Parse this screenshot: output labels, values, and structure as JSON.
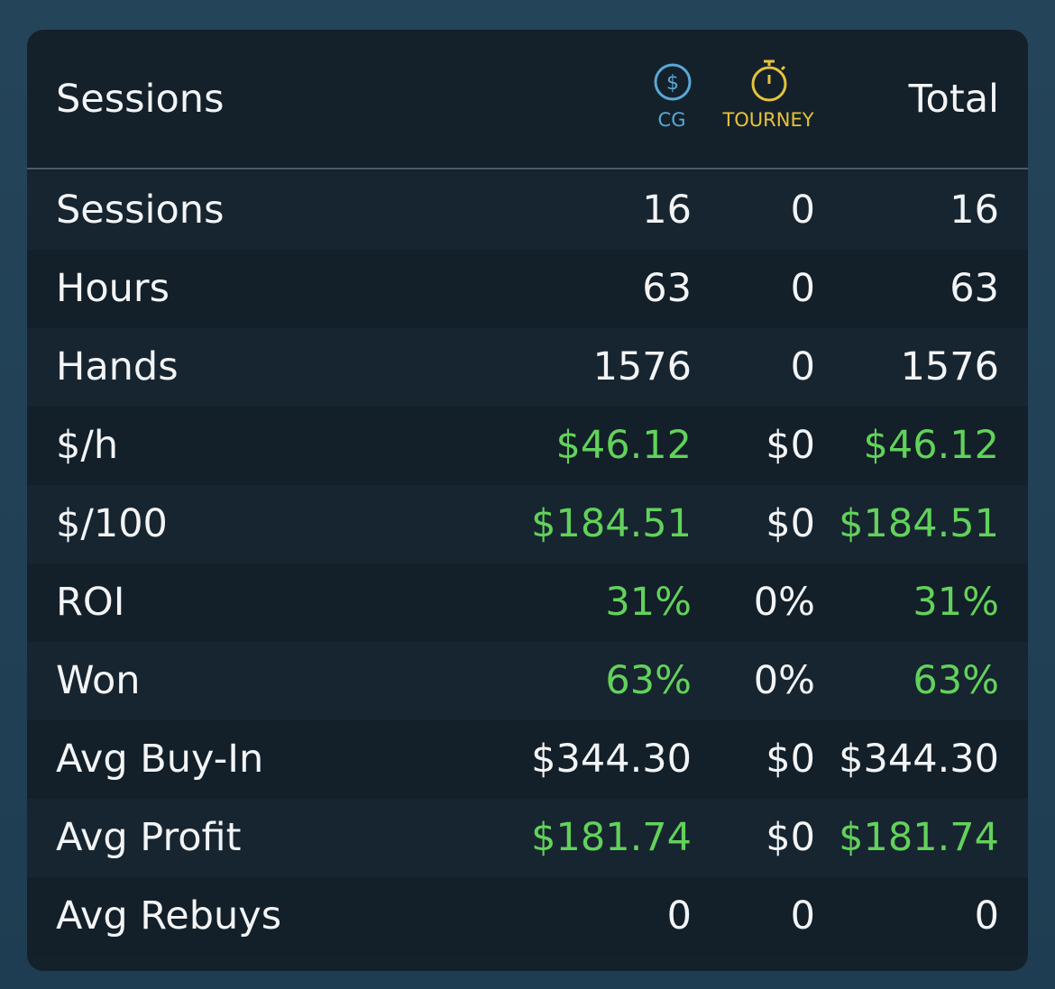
{
  "header": {
    "title": "Sessions",
    "columns": [
      "CG",
      "TOURNEY",
      "Total"
    ]
  },
  "table": {
    "rows": [
      {
        "label": "Sessions",
        "cells": [
          "16",
          "0",
          "16"
        ]
      },
      {
        "label": "Hours",
        "cells": [
          "63",
          "0",
          "63"
        ]
      },
      {
        "label": "Hands",
        "cells": [
          "1576",
          "0",
          "1576"
        ]
      },
      {
        "label": "$/h",
        "cells": [
          "$46.12",
          "$0",
          "$46.12"
        ]
      },
      {
        "label": "$/100",
        "cells": [
          "$184.51",
          "$0",
          "$184.51"
        ]
      },
      {
        "label": "ROI",
        "cells": [
          "31%",
          "0%",
          "31%"
        ]
      },
      {
        "label": "Won",
        "cells": [
          "63%",
          "0%",
          "63%"
        ]
      },
      {
        "label": "Avg Buy-In",
        "cells": [
          "$344.30",
          "$0",
          "$344.30"
        ]
      },
      {
        "label": "Avg Profit",
        "cells": [
          "$181.74",
          "$0",
          "$181.74"
        ]
      },
      {
        "label": "Avg Rebuys",
        "cells": [
          "0",
          "0",
          "0"
        ]
      }
    ]
  }
}
